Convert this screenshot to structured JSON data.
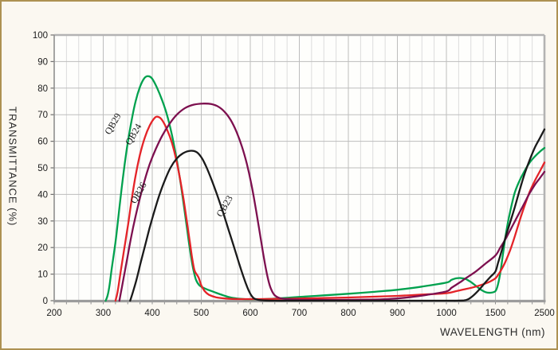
{
  "frame": {
    "border_color": "#ad9152",
    "background": "#fbf8f1",
    "plot_background": "#fefefc"
  },
  "chart_data": {
    "type": "line",
    "title": "",
    "xlabel": "WAVELENGTH (nm)",
    "ylabel": "TRANSMITTANCE (%)",
    "x_ticks": [
      200,
      300,
      400,
      500,
      600,
      700,
      800,
      900,
      1000,
      1500,
      2500
    ],
    "x_scale": "piecewise-linear-equal-tick-spacing",
    "minor_divisions_per_major": 4,
    "y_ticks": [
      0,
      10,
      20,
      30,
      40,
      50,
      60,
      70,
      80,
      90,
      100
    ],
    "ylim": [
      0,
      100
    ],
    "grid": {
      "horizontal": "major-only",
      "vertical": "major-and-minor",
      "legend_position": "labels-on-curves"
    },
    "grid_colors": {
      "major": "#bdbdbd",
      "minor": "#dcdcdc",
      "frame": "#b3b3b3",
      "axis": "#8f8f8f"
    },
    "series": [
      {
        "name": "QB29",
        "color": "#00A14E",
        "label_anchor": {
          "nm": 325,
          "pct": 66,
          "rotation": -60
        },
        "points": [
          [
            305,
            0
          ],
          [
            309,
            2
          ],
          [
            313,
            6
          ],
          [
            318,
            13
          ],
          [
            322,
            18
          ],
          [
            327,
            25
          ],
          [
            333,
            35
          ],
          [
            340,
            46
          ],
          [
            348,
            57
          ],
          [
            357,
            67
          ],
          [
            366,
            75
          ],
          [
            375,
            80.5
          ],
          [
            384,
            83.8
          ],
          [
            392,
            84.5
          ],
          [
            400,
            83.5
          ],
          [
            410,
            80
          ],
          [
            420,
            75.5
          ],
          [
            430,
            70
          ],
          [
            440,
            62.5
          ],
          [
            450,
            53
          ],
          [
            458,
            44
          ],
          [
            465,
            35
          ],
          [
            471,
            27
          ],
          [
            477,
            19
          ],
          [
            483,
            12.5
          ],
          [
            489,
            8
          ],
          [
            496,
            5.8
          ],
          [
            505,
            4.8
          ],
          [
            515,
            4
          ],
          [
            530,
            3
          ],
          [
            545,
            2
          ],
          [
            560,
            1.2
          ],
          [
            580,
            0.7
          ],
          [
            600,
            0.5
          ],
          [
            630,
            0.6
          ],
          [
            660,
            0.9
          ],
          [
            700,
            1.4
          ],
          [
            750,
            2
          ],
          [
            800,
            2.6
          ],
          [
            850,
            3.3
          ],
          [
            900,
            4.1
          ],
          [
            950,
            5.3
          ],
          [
            1000,
            6.8
          ],
          [
            1050,
            7.8
          ],
          [
            1100,
            8.4
          ],
          [
            1150,
            8.5
          ],
          [
            1200,
            8.1
          ],
          [
            1250,
            7
          ],
          [
            1300,
            5.6
          ],
          [
            1350,
            4.2
          ],
          [
            1400,
            3.2
          ],
          [
            1450,
            3
          ],
          [
            1500,
            3.6
          ],
          [
            1550,
            6
          ],
          [
            1600,
            10.5
          ],
          [
            1650,
            17
          ],
          [
            1700,
            23.5
          ],
          [
            1750,
            29
          ],
          [
            1800,
            33.5
          ],
          [
            1850,
            37.5
          ],
          [
            1900,
            41
          ],
          [
            2000,
            45.5
          ],
          [
            2100,
            49
          ],
          [
            2200,
            52
          ],
          [
            2300,
            54.2
          ],
          [
            2400,
            56
          ],
          [
            2500,
            57.5
          ]
        ]
      },
      {
        "name": "QB24",
        "color": "#E42328",
        "label_anchor": {
          "nm": 367,
          "pct": 62,
          "rotation": -60
        },
        "points": [
          [
            325,
            0
          ],
          [
            329,
            3
          ],
          [
            334,
            9
          ],
          [
            339,
            15
          ],
          [
            345,
            22
          ],
          [
            351,
            29
          ],
          [
            358,
            38
          ],
          [
            366,
            47
          ],
          [
            375,
            55
          ],
          [
            385,
            61.5
          ],
          [
            395,
            66
          ],
          [
            405,
            68.8
          ],
          [
            412,
            69.2
          ],
          [
            420,
            68
          ],
          [
            430,
            64.5
          ],
          [
            440,
            59.5
          ],
          [
            449,
            53
          ],
          [
            457,
            45.5
          ],
          [
            464,
            38
          ],
          [
            470,
            30.5
          ],
          [
            476,
            23
          ],
          [
            481,
            16.5
          ],
          [
            486,
            11.5
          ],
          [
            491,
            9.8
          ],
          [
            495,
            8.5
          ],
          [
            500,
            5.8
          ],
          [
            507,
            3.6
          ],
          [
            516,
            2.2
          ],
          [
            530,
            1.3
          ],
          [
            550,
            0.8
          ],
          [
            580,
            0.6
          ],
          [
            620,
            0.6
          ],
          [
            660,
            0.7
          ],
          [
            700,
            0.8
          ],
          [
            750,
            1
          ],
          [
            800,
            1.2
          ],
          [
            850,
            1.5
          ],
          [
            900,
            1.8
          ],
          [
            950,
            2.3
          ],
          [
            1000,
            2.8
          ],
          [
            1100,
            3.6
          ],
          [
            1200,
            4.4
          ],
          [
            1300,
            5.3
          ],
          [
            1400,
            6.5
          ],
          [
            1450,
            7.3
          ],
          [
            1500,
            8.4
          ],
          [
            1550,
            9.6
          ],
          [
            1600,
            11
          ],
          [
            1700,
            14.5
          ],
          [
            1800,
            19
          ],
          [
            1900,
            24.5
          ],
          [
            2000,
            30.5
          ],
          [
            2100,
            36
          ],
          [
            2200,
            41
          ],
          [
            2300,
            45
          ],
          [
            2400,
            48.5
          ],
          [
            2500,
            52
          ]
        ]
      },
      {
        "name": "QB26",
        "color": "#7D104F",
        "label_anchor": {
          "nm": 377,
          "pct": 40,
          "rotation": -60
        },
        "points": [
          [
            333,
            0
          ],
          [
            338,
            5
          ],
          [
            344,
            11
          ],
          [
            350,
            17
          ],
          [
            357,
            24
          ],
          [
            365,
            31
          ],
          [
            374,
            38
          ],
          [
            384,
            45
          ],
          [
            395,
            51.5
          ],
          [
            407,
            57
          ],
          [
            420,
            62
          ],
          [
            435,
            66.5
          ],
          [
            450,
            70
          ],
          [
            467,
            72.5
          ],
          [
            485,
            73.8
          ],
          [
            505,
            74.2
          ],
          [
            520,
            74
          ],
          [
            535,
            73
          ],
          [
            548,
            71
          ],
          [
            560,
            68
          ],
          [
            572,
            63.5
          ],
          [
            583,
            58
          ],
          [
            593,
            51.5
          ],
          [
            602,
            44
          ],
          [
            610,
            36
          ],
          [
            618,
            27
          ],
          [
            626,
            18
          ],
          [
            634,
            10
          ],
          [
            641,
            5
          ],
          [
            649,
            2.2
          ],
          [
            660,
            1
          ],
          [
            680,
            0.5
          ],
          [
            720,
            0.3
          ],
          [
            780,
            0.3
          ],
          [
            840,
            0.4
          ],
          [
            880,
            0.6
          ],
          [
            920,
            1.2
          ],
          [
            960,
            2.2
          ],
          [
            1000,
            3.5
          ],
          [
            1050,
            4.8
          ],
          [
            1100,
            6
          ],
          [
            1150,
            7.2
          ],
          [
            1200,
            8.5
          ],
          [
            1300,
            11
          ],
          [
            1400,
            14
          ],
          [
            1500,
            17
          ],
          [
            1600,
            20
          ],
          [
            1700,
            23
          ],
          [
            1800,
            26.5
          ],
          [
            1900,
            30
          ],
          [
            2000,
            33.5
          ],
          [
            2100,
            37
          ],
          [
            2200,
            40.5
          ],
          [
            2300,
            43.5
          ],
          [
            2400,
            46
          ],
          [
            2500,
            48.5
          ]
        ]
      },
      {
        "name": "QB23",
        "color": "#1A1A1A",
        "label_anchor": {
          "nm": 553,
          "pct": 35,
          "rotation": -60
        },
        "points": [
          [
            355,
            0
          ],
          [
            361,
            3.5
          ],
          [
            368,
            8
          ],
          [
            376,
            14
          ],
          [
            385,
            20.5
          ],
          [
            394,
            27
          ],
          [
            404,
            33.5
          ],
          [
            414,
            39.5
          ],
          [
            425,
            45
          ],
          [
            437,
            50
          ],
          [
            450,
            53.5
          ],
          [
            463,
            55.5
          ],
          [
            477,
            56.4
          ],
          [
            490,
            56
          ],
          [
            500,
            54
          ],
          [
            510,
            50.5
          ],
          [
            520,
            46
          ],
          [
            532,
            40
          ],
          [
            544,
            33.5
          ],
          [
            556,
            26.5
          ],
          [
            568,
            19.5
          ],
          [
            578,
            13.5
          ],
          [
            586,
            9
          ],
          [
            594,
            5
          ],
          [
            601,
            2.3
          ],
          [
            608,
            0.8
          ],
          [
            620,
            0.2
          ],
          [
            650,
            0
          ],
          [
            700,
            0
          ],
          [
            800,
            0
          ],
          [
            900,
            0
          ],
          [
            1000,
            0
          ],
          [
            1100,
            0
          ],
          [
            1180,
            0.1
          ],
          [
            1220,
            0.5
          ],
          [
            1260,
            1.5
          ],
          [
            1300,
            2.8
          ],
          [
            1350,
            4.8
          ],
          [
            1400,
            7
          ],
          [
            1450,
            9
          ],
          [
            1500,
            11
          ],
          [
            1550,
            14
          ],
          [
            1600,
            17
          ],
          [
            1700,
            23.5
          ],
          [
            1800,
            29.5
          ],
          [
            1900,
            35.5
          ],
          [
            2000,
            42
          ],
          [
            2100,
            48
          ],
          [
            2200,
            53
          ],
          [
            2300,
            57.5
          ],
          [
            2400,
            61
          ],
          [
            2500,
            64.5
          ]
        ]
      }
    ]
  }
}
